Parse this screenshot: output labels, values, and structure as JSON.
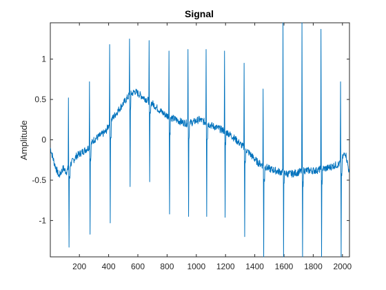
{
  "chart_data": {
    "type": "line",
    "title": "Signal",
    "xlabel": "",
    "ylabel": "Amplitude",
    "xlim": [
      1,
      2048
    ],
    "ylim": [
      -1.45,
      1.45
    ],
    "xticks": [
      200,
      400,
      600,
      800,
      1000,
      1200,
      1400,
      1600,
      1800,
      2000
    ],
    "xtick_labels": [
      "200",
      "400",
      "600",
      "800",
      "1000",
      "1200",
      "1400",
      "1600",
      "1800",
      "2000"
    ],
    "yticks": [
      -1,
      -0.5,
      0,
      0.5,
      1
    ],
    "ytick_labels": [
      "-1",
      "-0.5",
      "0",
      "0.5",
      "1"
    ],
    "grid": false,
    "legend": "none",
    "colors": {
      "line": "#0072BD",
      "axis": "#262626",
      "background": "#ffffff"
    },
    "baseline_points": [
      [
        1,
        -0.1
      ],
      [
        30,
        -0.3
      ],
      [
        60,
        -0.45
      ],
      [
        90,
        -0.35
      ],
      [
        110,
        -0.4
      ],
      [
        140,
        -0.3
      ],
      [
        180,
        -0.2
      ],
      [
        220,
        -0.15
      ],
      [
        260,
        -0.1
      ],
      [
        300,
        0.0
      ],
      [
        340,
        0.05
      ],
      [
        380,
        0.1
      ],
      [
        420,
        0.25
      ],
      [
        460,
        0.35
      ],
      [
        500,
        0.45
      ],
      [
        540,
        0.55
      ],
      [
        580,
        0.6
      ],
      [
        620,
        0.55
      ],
      [
        660,
        0.5
      ],
      [
        700,
        0.45
      ],
      [
        740,
        0.38
      ],
      [
        780,
        0.32
      ],
      [
        820,
        0.28
      ],
      [
        860,
        0.25
      ],
      [
        900,
        0.22
      ],
      [
        940,
        0.2
      ],
      [
        980,
        0.22
      ],
      [
        1020,
        0.25
      ],
      [
        1060,
        0.22
      ],
      [
        1100,
        0.18
      ],
      [
        1140,
        0.15
      ],
      [
        1180,
        0.12
      ],
      [
        1220,
        0.08
      ],
      [
        1260,
        0.02
      ],
      [
        1300,
        -0.05
      ],
      [
        1340,
        -0.12
      ],
      [
        1380,
        -0.2
      ],
      [
        1420,
        -0.28
      ],
      [
        1460,
        -0.32
      ],
      [
        1500,
        -0.36
      ],
      [
        1540,
        -0.38
      ],
      [
        1580,
        -0.4
      ],
      [
        1620,
        -0.42
      ],
      [
        1660,
        -0.42
      ],
      [
        1700,
        -0.4
      ],
      [
        1740,
        -0.38
      ],
      [
        1780,
        -0.38
      ],
      [
        1820,
        -0.38
      ],
      [
        1860,
        -0.36
      ],
      [
        1900,
        -0.35
      ],
      [
        1940,
        -0.32
      ],
      [
        1980,
        -0.3
      ],
      [
        2020,
        -0.15
      ],
      [
        2048,
        -0.42
      ]
    ],
    "spikes": [
      {
        "x": 128,
        "max": 0.52,
        "min": -1.33
      },
      {
        "x": 272,
        "max": 0.72,
        "min": -1.17
      },
      {
        "x": 410,
        "max": 1.18,
        "min": -1.03
      },
      {
        "x": 545,
        "max": 1.25,
        "min": -0.58
      },
      {
        "x": 680,
        "max": 1.23,
        "min": -0.52
      },
      {
        "x": 815,
        "max": 1.1,
        "min": -0.92
      },
      {
        "x": 945,
        "max": 1.12,
        "min": -0.95
      },
      {
        "x": 1070,
        "max": 1.12,
        "min": -0.95
      },
      {
        "x": 1195,
        "max": 1.1,
        "min": -0.96
      },
      {
        "x": 1330,
        "max": 0.95,
        "min": -1.2
      },
      {
        "x": 1460,
        "max": 0.63,
        "min": -1.45
      },
      {
        "x": 1595,
        "max": 1.45,
        "min": -1.45
      },
      {
        "x": 1725,
        "max": 1.45,
        "min": -1.45
      },
      {
        "x": 1855,
        "max": 1.37,
        "min": -1.45
      },
      {
        "x": 1990,
        "max": 0.72,
        "min": -1.45
      }
    ]
  }
}
